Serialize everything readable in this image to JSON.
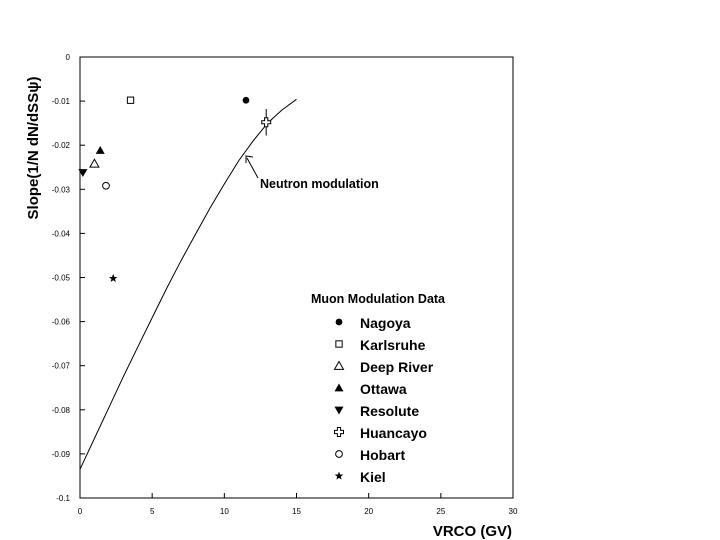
{
  "chart_data": {
    "type": "scatter",
    "title": "",
    "xlabel": "VRCO (GV)",
    "ylabel": "Slope(1/N dN/dSSψ)",
    "xlim": [
      0,
      30
    ],
    "ylim": [
      -0.1,
      0
    ],
    "x_ticks": [
      "0",
      "5",
      "10",
      "15",
      "20",
      "25",
      "30"
    ],
    "y_ticks": [
      "0",
      "-0.01",
      "-0.02",
      "-0.03",
      "-0.04",
      "-0.05",
      "-0.06",
      "-0.07",
      "-0.08",
      "-0.09",
      "-0.1"
    ],
    "x_tick_values": [
      0,
      5,
      10,
      15,
      20,
      25,
      30
    ],
    "y_tick_values": [
      0,
      -0.01,
      -0.02,
      -0.03,
      -0.04,
      -0.05,
      -0.06,
      -0.07,
      -0.08,
      -0.09,
      -0.1
    ],
    "grid": false,
    "legend": {
      "title": "Muon Modulation Data",
      "position": "bottom-right"
    },
    "series": [
      {
        "name": "Nagoya",
        "marker": "filled-circle",
        "points": [
          {
            "x": 11.5,
            "y": -0.0098
          }
        ]
      },
      {
        "name": "Karlsruhe",
        "marker": "open-square",
        "points": [
          {
            "x": 3.5,
            "y": -0.0098
          }
        ]
      },
      {
        "name": "Deep River",
        "marker": "open-triangle-up",
        "points": [
          {
            "x": 1.0,
            "y": -0.0242
          }
        ]
      },
      {
        "name": "Ottawa",
        "marker": "filled-triangle-up",
        "points": [
          {
            "x": 1.4,
            "y": -0.0212
          }
        ]
      },
      {
        "name": "Resolute",
        "marker": "filled-triangle-down",
        "points": [
          {
            "x": 0.2,
            "y": -0.0262
          }
        ]
      },
      {
        "name": "Huancayo",
        "marker": "open-cross",
        "points": [
          {
            "x": 12.9,
            "y": -0.0148,
            "yerr": 0.003
          }
        ]
      },
      {
        "name": "Hobart",
        "marker": "open-circle",
        "points": [
          {
            "x": 1.8,
            "y": -0.0292
          }
        ]
      },
      {
        "name": "Kiel",
        "marker": "star",
        "points": [
          {
            "x": 2.3,
            "y": -0.0502
          }
        ]
      }
    ],
    "curve": {
      "label": "Neutron modulation",
      "x": [
        0,
        1,
        2,
        3,
        4,
        5,
        6,
        7,
        8,
        9,
        10,
        11,
        12,
        13,
        14,
        15
      ],
      "y": [
        -0.0935,
        -0.0865,
        -0.0795,
        -0.0725,
        -0.0658,
        -0.0591,
        -0.0525,
        -0.0462,
        -0.0402,
        -0.0343,
        -0.0288,
        -0.0235,
        -0.019,
        -0.015,
        -0.012,
        -0.0096
      ]
    },
    "annotations": [
      {
        "text": "Neutron modulation",
        "x": 11.4,
        "y": -0.0217
      }
    ]
  }
}
